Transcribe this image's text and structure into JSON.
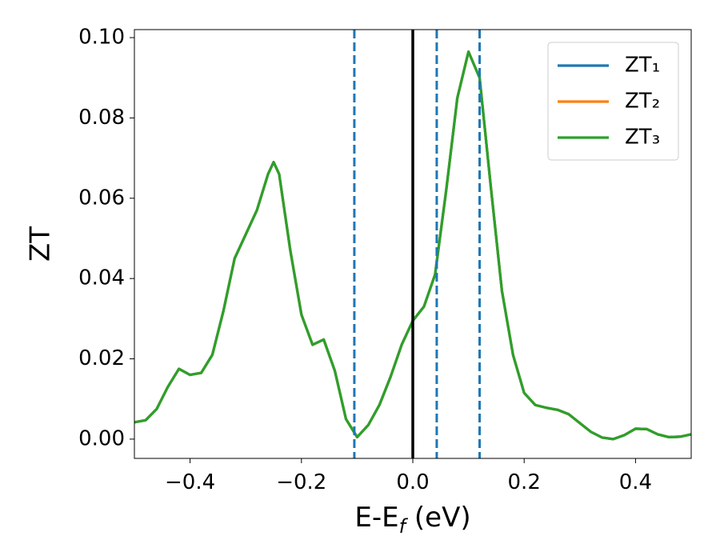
{
  "chart_data": {
    "type": "line",
    "y_label": "ZT",
    "x_label": {
      "text": "E-E",
      "subscript": "f",
      "suffix": " (eV)"
    },
    "x": [
      -0.5,
      -0.48,
      -0.46,
      -0.44,
      -0.42,
      -0.4,
      -0.38,
      -0.36,
      -0.34,
      -0.32,
      -0.3,
      -0.28,
      -0.26,
      -0.25,
      -0.24,
      -0.22,
      -0.2,
      -0.18,
      -0.16,
      -0.14,
      -0.12,
      -0.1,
      -0.08,
      -0.06,
      -0.04,
      -0.02,
      0,
      0.02,
      0.04,
      0.06,
      0.08,
      0.1,
      0.12,
      0.14,
      0.16,
      0.18,
      0.2,
      0.22,
      0.24,
      0.26,
      0.28,
      0.3,
      0.32,
      0.34,
      0.36,
      0.38,
      0.4,
      0.42,
      0.44,
      0.46,
      0.48,
      0.5
    ],
    "series": [
      {
        "name": "ZT₁",
        "color": "#1f77b4",
        "values": [
          0.0042,
          0.0047,
          0.0075,
          0.013,
          0.0175,
          0.016,
          0.0165,
          0.021,
          0.032,
          0.045,
          0.051,
          0.057,
          0.066,
          0.069,
          0.066,
          0.047,
          0.031,
          0.0235,
          0.0248,
          0.017,
          0.005,
          0.0005,
          0.0035,
          0.0085,
          0.0155,
          0.0235,
          0.0295,
          0.033,
          0.041,
          0.062,
          0.085,
          0.0965,
          0.09,
          0.063,
          0.037,
          0.021,
          0.0115,
          0.0085,
          0.0078,
          0.0073,
          0.0062,
          0.004,
          0.0018,
          0.0004,
          0,
          0.001,
          0.0026,
          0.0025,
          0.0012,
          0.0005,
          0.0006,
          0.0012
        ]
      },
      {
        "name": "ZT₂",
        "color": "#ff7f0e",
        "values": [
          0.0042,
          0.0047,
          0.0075,
          0.013,
          0.0175,
          0.016,
          0.0165,
          0.021,
          0.032,
          0.045,
          0.051,
          0.057,
          0.066,
          0.069,
          0.066,
          0.047,
          0.031,
          0.0235,
          0.0248,
          0.017,
          0.005,
          0.0005,
          0.0035,
          0.0085,
          0.0155,
          0.0235,
          0.0295,
          0.033,
          0.041,
          0.062,
          0.085,
          0.0965,
          0.09,
          0.063,
          0.037,
          0.021,
          0.0115,
          0.0085,
          0.0078,
          0.0073,
          0.0062,
          0.004,
          0.0018,
          0.0004,
          0,
          0.001,
          0.0026,
          0.0025,
          0.0012,
          0.0005,
          0.0006,
          0.0012
        ]
      },
      {
        "name": "ZT₃",
        "color": "#2ca02c",
        "values": [
          0.0042,
          0.0047,
          0.0075,
          0.013,
          0.0175,
          0.016,
          0.0165,
          0.021,
          0.032,
          0.045,
          0.051,
          0.057,
          0.066,
          0.069,
          0.066,
          0.047,
          0.031,
          0.0235,
          0.0248,
          0.017,
          0.005,
          0.0005,
          0.0035,
          0.0085,
          0.0155,
          0.0235,
          0.0295,
          0.033,
          0.041,
          0.062,
          0.085,
          0.0965,
          0.09,
          0.063,
          0.037,
          0.021,
          0.0115,
          0.0085,
          0.0078,
          0.0073,
          0.0062,
          0.004,
          0.0018,
          0.0004,
          0,
          0.001,
          0.0026,
          0.0025,
          0.0012,
          0.0005,
          0.0006,
          0.0012
        ]
      }
    ],
    "vlines": [
      {
        "x": 0,
        "color": "#000000",
        "style": "solid"
      },
      {
        "x": -0.105,
        "color": "#1f77b4",
        "style": "dashed"
      },
      {
        "x": 0.043,
        "color": "#1f77b4",
        "style": "dashed"
      },
      {
        "x": 0.12,
        "color": "#1f77b4",
        "style": "dashed"
      }
    ],
    "xlim": [
      -0.5,
      0.5
    ],
    "ylim": [
      -0.0048,
      0.102
    ],
    "xticks": [
      {
        "value": -0.4,
        "label": "−0.4"
      },
      {
        "value": -0.2,
        "label": "−0.2"
      },
      {
        "value": 0,
        "label": "0.0"
      },
      0.2,
      0.4
    ],
    "yticks": [
      {
        "value": 0,
        "label": "0.00"
      },
      0.02,
      0.04,
      0.06,
      0.08,
      {
        "value": 0.1,
        "label": "0.10"
      }
    ],
    "legend": "upper right"
  }
}
